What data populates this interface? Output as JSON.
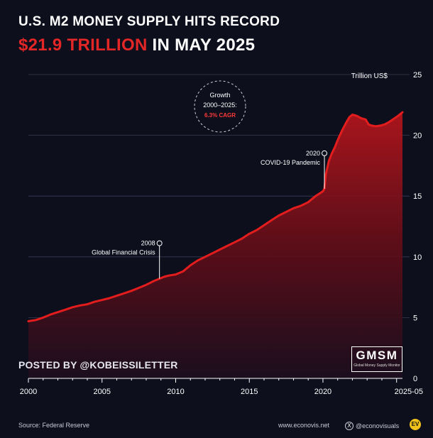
{
  "header": {
    "title_line1": "U.S. M2 MONEY SUPPLY HITS RECORD",
    "title_highlight": "$21.9 TRILLION",
    "title_rest": " IN MAY 2025"
  },
  "chart_data": {
    "type": "area",
    "ylabel": "Trillion US$",
    "ylim": [
      0,
      25
    ],
    "yticks": [
      0,
      5,
      10,
      15,
      20,
      25
    ],
    "xlim": [
      2000,
      2025.4
    ],
    "xtick_labels": [
      "2000",
      "2005",
      "2010",
      "2015",
      "2020",
      "2025-05"
    ],
    "xtick_values": [
      2000,
      2005,
      2010,
      2015,
      2020,
      2025.4
    ],
    "grid": true,
    "series": [
      {
        "color": "#e31d1d",
        "x": [
          2000,
          2000.5,
          2001,
          2001.5,
          2002,
          2002.5,
          2003,
          2003.5,
          2004,
          2004.5,
          2005,
          2005.5,
          2006,
          2006.5,
          2007,
          2007.5,
          2008,
          2008.5,
          2008.9,
          2009.2,
          2009.5,
          2010,
          2010.5,
          2011,
          2011.5,
          2012,
          2012.5,
          2013,
          2013.5,
          2014,
          2014.5,
          2015,
          2015.5,
          2016,
          2016.5,
          2017,
          2017.5,
          2018,
          2018.5,
          2019,
          2019.5,
          2020.0,
          2020.1,
          2020.2,
          2020.4,
          2020.6,
          2020.8,
          2021,
          2021.3,
          2021.6,
          2021.8,
          2022,
          2022.3,
          2022.6,
          2022.9,
          2023.1,
          2023.3,
          2023.6,
          2023.9,
          2024.2,
          2024.5,
          2024.8,
          2025.1,
          2025.4
        ],
        "y": [
          4.7,
          4.8,
          5.0,
          5.25,
          5.45,
          5.65,
          5.85,
          6.0,
          6.1,
          6.3,
          6.45,
          6.6,
          6.8,
          7.0,
          7.2,
          7.45,
          7.7,
          8.0,
          8.2,
          8.35,
          8.45,
          8.55,
          8.8,
          9.3,
          9.7,
          10.0,
          10.3,
          10.6,
          10.9,
          11.2,
          11.5,
          11.9,
          12.2,
          12.6,
          13.0,
          13.4,
          13.7,
          14.0,
          14.2,
          14.5,
          15.0,
          15.4,
          15.6,
          16.8,
          17.9,
          18.5,
          19.0,
          19.6,
          20.4,
          21.1,
          21.5,
          21.7,
          21.6,
          21.4,
          21.3,
          20.9,
          20.8,
          20.75,
          20.8,
          20.9,
          21.1,
          21.35,
          21.6,
          21.9
        ]
      }
    ],
    "annotations": [
      {
        "label_year": "2008",
        "label_text": "Global Financial Crisis",
        "x": 2008.9,
        "y": 8.2
      },
      {
        "label_year": "2020",
        "label_text": "COVID-19 Pandemic",
        "x": 2020.1,
        "y": 15.6
      }
    ],
    "callout": {
      "line1": "Growth",
      "line2": "2000–2025:",
      "line3": "6.3% CAGR"
    }
  },
  "posted_by": "POSTED BY @KOBEISSILETTER",
  "badge": {
    "big": "GMSM",
    "small": "Global Money Supply Monitor"
  },
  "footer": {
    "source": "Source: Federal Reserve",
    "site": "www.econovis.net",
    "x_handle": "@econovisuals",
    "x_icon": "X",
    "logo_text": "EV"
  }
}
